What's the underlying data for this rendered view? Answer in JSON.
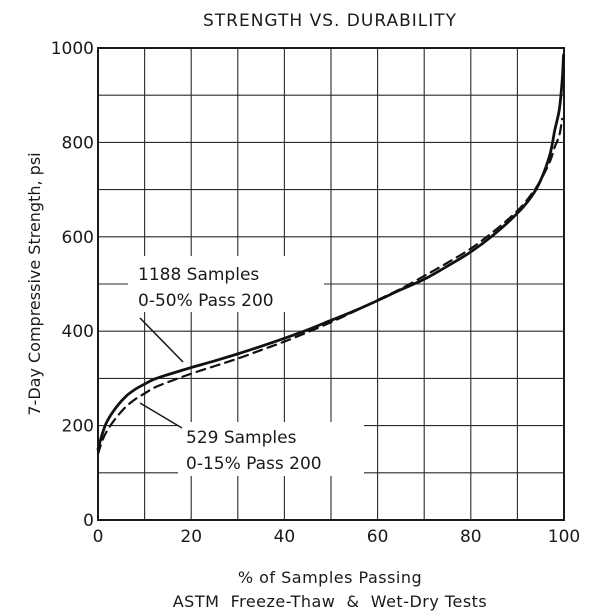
{
  "chart_data": {
    "type": "line",
    "title": "STRENGTH VS. DURABILITY",
    "xlabel": "% of Samples Passing",
    "xlabel2": "ASTM  Freeze-Thaw  &  Wet-Dry Tests",
    "ylabel": "7-Day Compressive Strength, psi",
    "xlim": [
      0,
      100
    ],
    "ylim": [
      0,
      1000
    ],
    "grid": true,
    "x_ticks": [
      0,
      20,
      40,
      60,
      80,
      100
    ],
    "x_tick_labels": [
      "0",
      "20",
      "40",
      "60",
      "80",
      "100"
    ],
    "y_ticks": [
      0,
      200,
      400,
      600,
      800,
      1000
    ],
    "y_tick_labels": [
      "0",
      "200",
      "400",
      "600",
      "800",
      "1000"
    ],
    "series": [
      {
        "name": "1188 Samples 0-50% Pass 200",
        "style": "solid",
        "points": [
          [
            0,
            150
          ],
          [
            1,
            185
          ],
          [
            2,
            210
          ],
          [
            4,
            240
          ],
          [
            6,
            262
          ],
          [
            8,
            277
          ],
          [
            10,
            288
          ],
          [
            12,
            298
          ],
          [
            15,
            308
          ],
          [
            20,
            323
          ],
          [
            25,
            337
          ],
          [
            30,
            352
          ],
          [
            35,
            368
          ],
          [
            40,
            385
          ],
          [
            45,
            403
          ],
          [
            50,
            423
          ],
          [
            55,
            443
          ],
          [
            60,
            465
          ],
          [
            65,
            488
          ],
          [
            70,
            510
          ],
          [
            75,
            538
          ],
          [
            80,
            568
          ],
          [
            85,
            605
          ],
          [
            90,
            650
          ],
          [
            93,
            685
          ],
          [
            95,
            720
          ],
          [
            97,
            775
          ],
          [
            98,
            825
          ],
          [
            99,
            870
          ],
          [
            99.6,
            930
          ],
          [
            99.9,
            985
          ]
        ]
      },
      {
        "name": "529 Samples 0-15% Pass 200",
        "style": "dashed",
        "points": [
          [
            0,
            140
          ],
          [
            1,
            170
          ],
          [
            2,
            190
          ],
          [
            4,
            218
          ],
          [
            6,
            240
          ],
          [
            8,
            256
          ],
          [
            10,
            268
          ],
          [
            12,
            280
          ],
          [
            15,
            292
          ],
          [
            20,
            310
          ],
          [
            25,
            326
          ],
          [
            30,
            342
          ],
          [
            35,
            360
          ],
          [
            40,
            378
          ],
          [
            45,
            398
          ],
          [
            50,
            419
          ],
          [
            55,
            442
          ],
          [
            60,
            466
          ],
          [
            65,
            490
          ],
          [
            70,
            517
          ],
          [
            75,
            545
          ],
          [
            80,
            575
          ],
          [
            85,
            612
          ],
          [
            90,
            655
          ],
          [
            93,
            690
          ],
          [
            95,
            720
          ],
          [
            97,
            760
          ],
          [
            98,
            790
          ],
          [
            99,
            815
          ],
          [
            99.6,
            850
          ]
        ]
      }
    ],
    "annotations": [
      {
        "line1": "1188 Samples",
        "line2": "0-50% Pass 200"
      },
      {
        "line1": "529 Samples",
        "line2": "0-15% Pass 200"
      }
    ]
  }
}
